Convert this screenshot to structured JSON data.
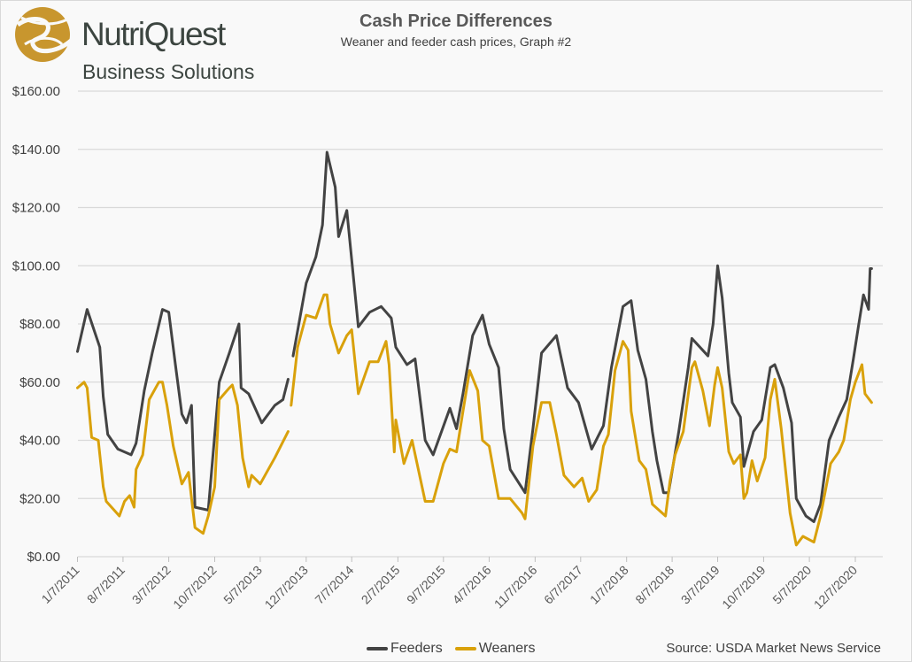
{
  "logo": {
    "name": "NutriQuest",
    "sub": "Business Solutions",
    "color": "#c8962e"
  },
  "chart_data": {
    "type": "line",
    "title": "Cash Price Differences",
    "subtitle": "Weaner and feeder cash prices, Graph #2",
    "source": "Source: USDA Market News Service",
    "ylim": [
      0,
      160
    ],
    "yticks": [
      "$0.00",
      "$20.00",
      "$40.00",
      "$60.00",
      "$80.00",
      "$100.00",
      "$120.00",
      "$140.00",
      "$160.00"
    ],
    "ytick_values": [
      0,
      20,
      40,
      60,
      80,
      100,
      120,
      140,
      160
    ],
    "xticks": [
      "1/7/2011",
      "8/7/2011",
      "3/7/2012",
      "10/7/2012",
      "5/7/2013",
      "12/7/2013",
      "7/7/2014",
      "2/7/2015",
      "9/7/2015",
      "4/7/2016",
      "11/7/2016",
      "6/7/2017",
      "1/7/2018",
      "8/7/2018",
      "3/7/2019",
      "10/7/2019",
      "5/7/2020",
      "12/7/2020"
    ],
    "grid": "horizontal",
    "legend_position": "bottom",
    "series": [
      {
        "name": "Feeders",
        "color": "#434343",
        "points": [
          [
            "2011-01-07",
            70.5
          ],
          [
            "2011-02-21",
            85
          ],
          [
            "2011-04-21",
            72
          ],
          [
            "2011-05-07",
            55
          ],
          [
            "2011-05-28",
            42
          ],
          [
            "2011-07-14",
            37
          ],
          [
            "2011-09-14",
            35
          ],
          [
            "2011-10-07",
            39
          ],
          [
            "2011-11-14",
            57
          ],
          [
            "2011-12-21",
            70
          ],
          [
            "2012-02-07",
            85
          ],
          [
            "2012-03-07",
            84
          ],
          [
            "2012-04-07",
            66
          ],
          [
            "2012-05-07",
            49
          ],
          [
            "2012-05-28",
            46
          ],
          [
            "2012-06-21",
            52
          ],
          [
            "2012-07-07",
            17
          ],
          [
            "2012-09-07",
            16
          ],
          [
            "2012-10-28",
            60
          ],
          [
            "2012-12-14",
            70
          ],
          [
            "2013-01-28",
            80
          ],
          [
            "2013-02-07",
            58
          ],
          [
            "2013-03-14",
            56
          ],
          [
            "2013-05-14",
            46
          ],
          [
            "2013-07-14",
            52
          ],
          [
            "2013-08-21",
            54
          ],
          [
            "2013-09-14",
            61
          ],
          [
            "2013-09-21",
            null
          ],
          [
            "2013-10-07",
            69
          ],
          [
            "2013-12-07",
            94
          ],
          [
            "2014-01-21",
            103
          ],
          [
            "2014-02-21",
            114
          ],
          [
            "2014-03-14",
            139
          ],
          [
            "2014-04-21",
            127
          ],
          [
            "2014-05-07",
            110
          ],
          [
            "2014-06-14",
            119
          ],
          [
            "2014-08-07",
            79
          ],
          [
            "2014-09-28",
            84
          ],
          [
            "2014-11-21",
            86
          ],
          [
            "2015-01-07",
            82
          ],
          [
            "2015-01-28",
            72
          ],
          [
            "2015-03-21",
            66
          ],
          [
            "2015-04-28",
            68
          ],
          [
            "2015-06-14",
            40
          ],
          [
            "2015-07-21",
            35
          ],
          [
            "2015-10-07",
            51
          ],
          [
            "2015-11-07",
            44
          ],
          [
            "2015-12-07",
            56
          ],
          [
            "2016-01-21",
            76
          ],
          [
            "2016-03-07",
            83
          ],
          [
            "2016-04-07",
            73
          ],
          [
            "2016-05-21",
            65
          ],
          [
            "2016-06-14",
            44
          ],
          [
            "2016-07-14",
            30
          ],
          [
            "2016-09-21",
            22
          ],
          [
            "2016-10-28",
            44
          ],
          [
            "2016-12-07",
            70
          ],
          [
            "2017-02-14",
            76
          ],
          [
            "2017-04-07",
            58
          ],
          [
            "2017-05-28",
            53
          ],
          [
            "2017-07-28",
            37
          ],
          [
            "2017-09-21",
            45
          ],
          [
            "2017-10-28",
            65
          ],
          [
            "2017-12-21",
            86
          ],
          [
            "2018-01-28",
            88
          ],
          [
            "2018-02-28",
            71
          ],
          [
            "2018-04-07",
            61
          ],
          [
            "2018-05-07",
            43
          ],
          [
            "2018-05-28",
            33
          ],
          [
            "2018-06-28",
            22
          ],
          [
            "2018-07-21",
            22
          ],
          [
            "2018-09-07",
            43
          ],
          [
            "2018-10-21",
            65
          ],
          [
            "2018-11-07",
            75
          ],
          [
            "2019-01-21",
            69
          ],
          [
            "2019-02-14",
            80
          ],
          [
            "2019-03-07",
            100
          ],
          [
            "2019-03-28",
            89
          ],
          [
            "2019-04-28",
            63
          ],
          [
            "2019-05-14",
            53
          ],
          [
            "2019-06-21",
            48
          ],
          [
            "2019-07-07",
            31
          ],
          [
            "2019-08-21",
            43
          ],
          [
            "2019-09-28",
            47
          ],
          [
            "2019-11-07",
            65
          ],
          [
            "2019-11-28",
            66
          ],
          [
            "2020-01-07",
            58
          ],
          [
            "2020-02-14",
            46
          ],
          [
            "2020-03-07",
            20
          ],
          [
            "2020-04-21",
            14
          ],
          [
            "2020-05-28",
            12
          ],
          [
            "2020-06-28",
            18
          ],
          [
            "2020-08-07",
            40
          ],
          [
            "2020-09-21",
            48
          ],
          [
            "2020-10-28",
            54
          ],
          [
            "2020-11-28",
            68
          ],
          [
            "2020-12-21",
            79
          ],
          [
            "2021-01-14",
            90
          ],
          [
            "2021-02-07",
            85
          ],
          [
            "2021-02-14",
            99
          ],
          [
            "2021-02-21",
            99
          ]
        ]
      },
      {
        "name": "Weaners",
        "color": "#d9a10b",
        "points": [
          [
            "2011-01-07",
            58
          ],
          [
            "2011-02-07",
            60
          ],
          [
            "2011-02-21",
            58
          ],
          [
            "2011-03-14",
            41
          ],
          [
            "2011-04-14",
            40
          ],
          [
            "2011-05-07",
            24
          ],
          [
            "2011-05-21",
            19
          ],
          [
            "2011-07-21",
            14
          ],
          [
            "2011-08-14",
            19
          ],
          [
            "2011-09-07",
            21
          ],
          [
            "2011-09-28",
            17
          ],
          [
            "2011-10-07",
            30
          ],
          [
            "2011-11-07",
            35
          ],
          [
            "2011-12-07",
            54
          ],
          [
            "2012-01-21",
            60
          ],
          [
            "2012-02-07",
            60
          ],
          [
            "2012-02-28",
            52
          ],
          [
            "2012-03-28",
            38
          ],
          [
            "2012-05-07",
            25
          ],
          [
            "2012-06-07",
            29
          ],
          [
            "2012-07-07",
            10
          ],
          [
            "2012-08-14",
            8
          ],
          [
            "2012-09-07",
            14
          ],
          [
            "2012-10-07",
            24
          ],
          [
            "2012-10-28",
            54
          ],
          [
            "2012-12-14",
            58
          ],
          [
            "2012-12-28",
            59
          ],
          [
            "2013-01-21",
            52
          ],
          [
            "2013-02-14",
            34
          ],
          [
            "2013-03-14",
            24
          ],
          [
            "2013-03-28",
            28
          ],
          [
            "2013-05-07",
            25
          ],
          [
            "2013-07-14",
            34
          ],
          [
            "2013-09-14",
            43
          ],
          [
            "2013-09-21",
            null
          ],
          [
            "2013-09-28",
            52
          ],
          [
            "2013-10-28",
            72
          ],
          [
            "2013-12-07",
            83
          ],
          [
            "2014-01-21",
            82
          ],
          [
            "2014-02-28",
            90
          ],
          [
            "2014-03-14",
            90
          ],
          [
            "2014-03-28",
            80
          ],
          [
            "2014-05-07",
            70
          ],
          [
            "2014-06-14",
            76
          ],
          [
            "2014-07-07",
            78
          ],
          [
            "2014-08-07",
            56
          ],
          [
            "2014-09-28",
            67
          ],
          [
            "2014-11-07",
            67
          ],
          [
            "2014-12-14",
            74
          ],
          [
            "2014-12-28",
            66
          ],
          [
            "2015-01-21",
            36
          ],
          [
            "2015-01-28",
            47
          ],
          [
            "2015-03-07",
            32
          ],
          [
            "2015-04-14",
            40
          ],
          [
            "2015-06-14",
            19
          ],
          [
            "2015-07-21",
            19
          ],
          [
            "2015-09-07",
            32
          ],
          [
            "2015-10-07",
            37
          ],
          [
            "2015-11-07",
            36
          ],
          [
            "2015-12-07",
            50
          ],
          [
            "2016-01-07",
            64
          ],
          [
            "2016-02-14",
            57
          ],
          [
            "2016-03-07",
            40
          ],
          [
            "2016-04-07",
            38
          ],
          [
            "2016-05-21",
            20
          ],
          [
            "2016-07-14",
            20
          ],
          [
            "2016-09-07",
            15
          ],
          [
            "2016-09-21",
            13
          ],
          [
            "2016-10-28",
            38
          ],
          [
            "2016-12-07",
            53
          ],
          [
            "2017-01-14",
            53
          ],
          [
            "2017-02-14",
            42
          ],
          [
            "2017-03-21",
            28
          ],
          [
            "2017-05-07",
            24
          ],
          [
            "2017-06-14",
            27
          ],
          [
            "2017-07-14",
            19
          ],
          [
            "2017-08-21",
            23
          ],
          [
            "2017-09-21",
            38
          ],
          [
            "2017-10-14",
            42
          ],
          [
            "2017-11-14",
            64
          ],
          [
            "2017-12-21",
            74
          ],
          [
            "2018-01-14",
            71
          ],
          [
            "2018-01-28",
            50
          ],
          [
            "2018-03-07",
            33
          ],
          [
            "2018-04-07",
            30
          ],
          [
            "2018-05-07",
            18
          ],
          [
            "2018-07-07",
            14
          ],
          [
            "2018-07-28",
            26
          ],
          [
            "2018-08-21",
            35
          ],
          [
            "2018-09-28",
            43
          ],
          [
            "2018-11-07",
            65
          ],
          [
            "2018-11-21",
            67
          ],
          [
            "2018-12-28",
            57
          ],
          [
            "2019-01-28",
            45
          ],
          [
            "2019-02-21",
            59
          ],
          [
            "2019-03-07",
            65
          ],
          [
            "2019-03-28",
            58
          ],
          [
            "2019-04-28",
            36
          ],
          [
            "2019-05-21",
            32
          ],
          [
            "2019-06-21",
            35
          ],
          [
            "2019-07-07",
            20
          ],
          [
            "2019-07-21",
            22
          ],
          [
            "2019-08-14",
            33
          ],
          [
            "2019-09-07",
            26
          ],
          [
            "2019-10-14",
            34
          ],
          [
            "2019-11-07",
            54
          ],
          [
            "2019-11-28",
            61
          ],
          [
            "2019-12-28",
            44
          ],
          [
            "2020-02-07",
            15
          ],
          [
            "2020-03-07",
            4
          ],
          [
            "2020-04-07",
            7
          ],
          [
            "2020-05-28",
            5
          ],
          [
            "2020-06-28",
            14
          ],
          [
            "2020-08-14",
            32
          ],
          [
            "2020-09-21",
            36
          ],
          [
            "2020-10-14",
            40
          ],
          [
            "2020-11-14",
            54
          ],
          [
            "2020-12-07",
            60
          ],
          [
            "2021-01-07",
            66
          ],
          [
            "2021-01-21",
            56
          ],
          [
            "2021-02-21",
            53
          ]
        ]
      }
    ]
  }
}
